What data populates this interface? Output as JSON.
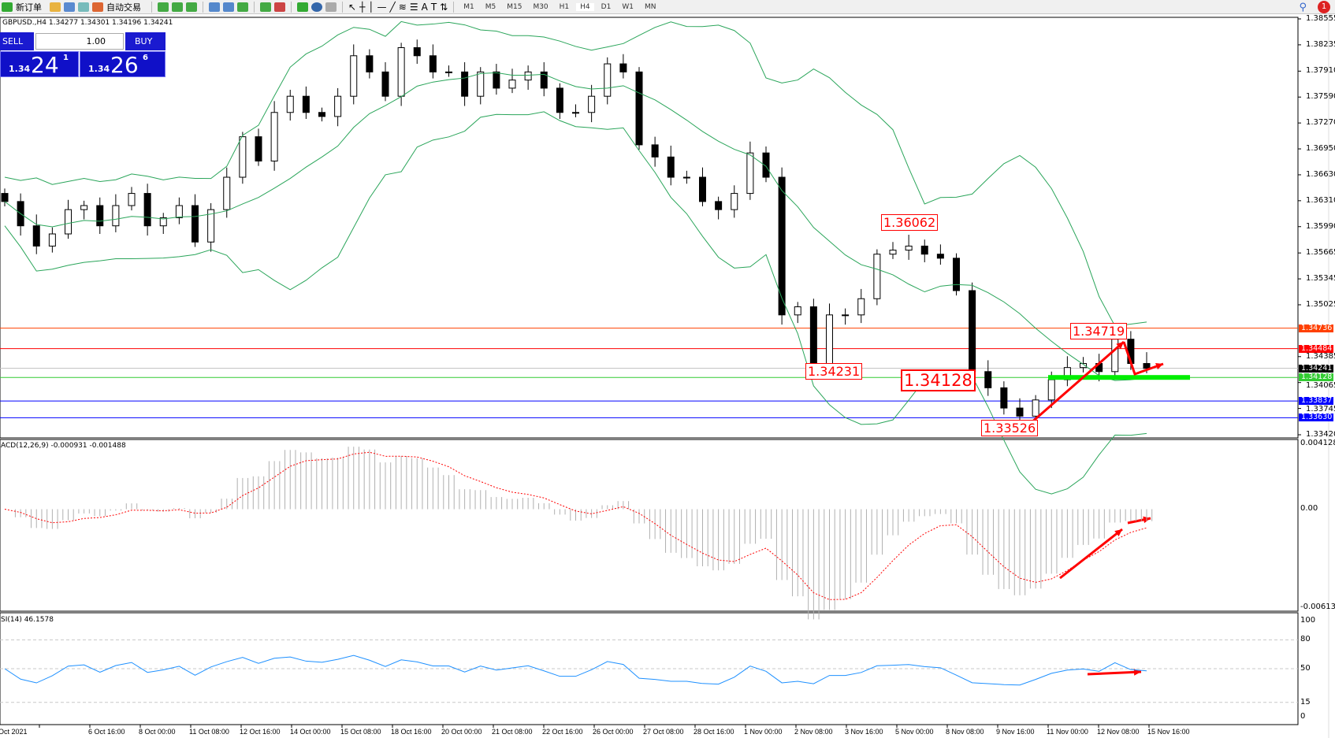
{
  "toolbar": {
    "new_order": "新订单",
    "auto_trading": "自动交易",
    "timeframes": [
      "M1",
      "M5",
      "M15",
      "M30",
      "H1",
      "H4",
      "D1",
      "W1",
      "MN"
    ],
    "active_timeframe": "H4",
    "notifications": "1"
  },
  "chart_info": "GBPUSD.,H4  1.34277 1.34301 1.34196 1.34241",
  "trade_panel": {
    "sell": "SELL",
    "buy": "BUY",
    "lot": "1.00",
    "sell_prefix": "1.34",
    "sell_big": "24",
    "sell_sup": "1",
    "buy_prefix": "1.34",
    "buy_big": "26",
    "buy_sup": "6"
  },
  "price_axis": [
    "1.38555",
    "1.38235",
    "1.37910",
    "1.37590",
    "1.37270",
    "1.36950",
    "1.36630",
    "1.36310",
    "1.35990",
    "1.35665",
    "1.35345",
    "1.35025",
    "1.34385",
    "1.34065",
    "1.33745",
    "1.33420"
  ],
  "price_tags": [
    {
      "value": "1.34736",
      "color": "#ff4000"
    },
    {
      "value": "1.34484",
      "color": "#ff0000"
    },
    {
      "value": "1.34241",
      "color": "#000000"
    },
    {
      "value": "1.34128",
      "color": "#33cc33"
    },
    {
      "value": "1.33837",
      "color": "#0000ff"
    },
    {
      "value": "1.33630",
      "color": "#0000ff"
    }
  ],
  "annotations": [
    "1.36062",
    "1.34231",
    "1.34128",
    "1.33526",
    "1.34719"
  ],
  "macd": {
    "title": "ACD(12,26,9) -0.000931 -0.001488",
    "axis": [
      "0.004128",
      "0.00",
      "-0.006132"
    ]
  },
  "rsi": {
    "title": "SI(14) 46.1578",
    "axis": [
      "100",
      "80",
      "50",
      "15",
      "0"
    ]
  },
  "time_axis": [
    "Oct 2021",
    "6 Oct 16:00",
    "8 Oct 00:00",
    "11 Oct 08:00",
    "12 Oct 16:00",
    "14 Oct 00:00",
    "15 Oct 08:00",
    "18 Oct 16:00",
    "20 Oct 00:00",
    "21 Oct 08:00",
    "22 Oct 16:00",
    "26 Oct 00:00",
    "27 Oct 08:00",
    "28 Oct 16:00",
    "1 Nov 00:00",
    "2 Nov 08:00",
    "3 Nov 16:00",
    "5 Nov 00:00",
    "8 Nov 08:00",
    "9 Nov 16:00",
    "11 Nov 00:00",
    "12 Nov 08:00",
    "15 Nov 16:00"
  ],
  "chart_data": {
    "type": "candlestick",
    "symbol": "GBPUSD.",
    "timeframe": "H4",
    "ylim": [
      1.3342,
      1.38555
    ],
    "closes": [
      1.363,
      1.36,
      1.3575,
      1.359,
      1.362,
      1.3625,
      1.36,
      1.3625,
      1.364,
      1.36,
      1.361,
      1.3625,
      1.358,
      1.362,
      1.366,
      1.371,
      1.368,
      1.374,
      1.376,
      1.374,
      1.3735,
      1.376,
      1.381,
      1.379,
      1.376,
      1.382,
      1.381,
      1.379,
      1.379,
      1.376,
      1.379,
      1.377,
      1.378,
      1.379,
      1.377,
      1.374,
      1.374,
      1.376,
      1.38,
      1.379,
      1.37,
      1.3685,
      1.366,
      1.366,
      1.363,
      1.362,
      1.364,
      1.369,
      1.366,
      1.349,
      1.35,
      1.343,
      1.349,
      1.349,
      1.351,
      1.3565,
      1.357,
      1.3575,
      1.3565,
      1.356,
      1.352,
      1.342,
      1.34,
      1.3375,
      1.3365,
      1.3385,
      1.341,
      1.3425,
      1.343,
      1.342,
      1.346,
      1.343,
      1.3424
    ],
    "indicators": [
      "Bollinger Bands",
      "MACD(12,26,9)",
      "RSI(14)"
    ]
  }
}
